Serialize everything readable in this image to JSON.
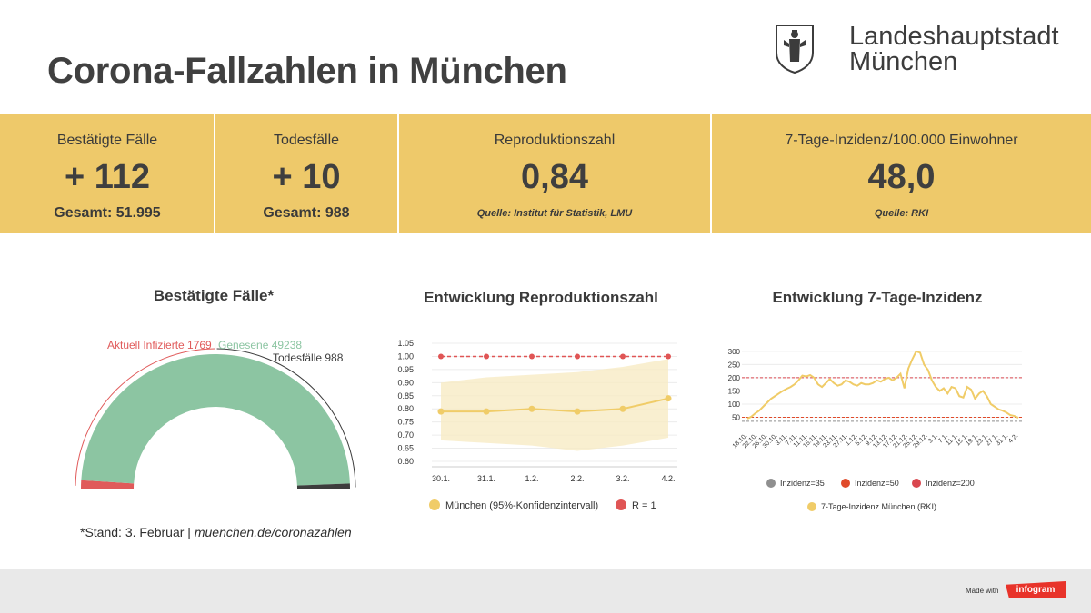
{
  "header": {
    "title": "Corona-Fallzahlen in München",
    "city_line1": "Landeshauptstadt",
    "city_line2": "München"
  },
  "kpis": [
    {
      "label": "Bestätigte Fälle",
      "value": "+ 112",
      "sub": "Gesamt: 51.995"
    },
    {
      "label": "Todesfälle",
      "value": "+ 10",
      "sub": "Gesamt: 988"
    },
    {
      "label": "Reproduktionszahl",
      "value": "0,84",
      "source": "Quelle: Institut für Statistik, LMU"
    },
    {
      "label": "7-Tage-Inzidenz/100.000 Einwohner",
      "value": "48,0",
      "source": "Quelle: RKI"
    }
  ],
  "chart_data": [
    {
      "type": "pie",
      "title": "Bestätigte Fälle*",
      "categories": [
        "Aktuell Infizierte",
        "Genesene",
        "Todesfälle"
      ],
      "values": [
        1769,
        49238,
        988
      ],
      "labels": [
        "Aktuell Infizierte 1769",
        "Genesene 49238",
        "Todesfälle 988"
      ],
      "colors": [
        "#e05a5a",
        "#8cc5a2",
        "#3d3d3d"
      ],
      "shape": "semi-donut"
    },
    {
      "type": "line",
      "title": "Entwicklung Reproduktionszahl",
      "categories": [
        "30.1.",
        "31.1.",
        "1.2.",
        "2.2.",
        "3.2.",
        "4.2."
      ],
      "series": [
        {
          "name": "München (95%-Konfidenzintervall)",
          "values": [
            0.79,
            0.79,
            0.8,
            0.79,
            0.8,
            0.84
          ],
          "lower": [
            0.68,
            0.67,
            0.66,
            0.64,
            0.66,
            0.69
          ],
          "upper": [
            0.9,
            0.92,
            0.93,
            0.94,
            0.96,
            0.99
          ],
          "color": "#f0cc68"
        },
        {
          "name": "R = 1",
          "values": [
            1.0,
            1.0,
            1.0,
            1.0,
            1.0,
            1.0
          ],
          "color": "#e05555"
        }
      ],
      "yticks": [
        "1.05",
        "1.00",
        "0.95",
        "0.90",
        "0.85",
        "0.80",
        "0.75",
        "0.70",
        "0.65",
        "0.60"
      ],
      "ylim": [
        0.6,
        1.05
      ]
    },
    {
      "type": "line",
      "title": "Entwicklung 7-Tage-Inzidenz",
      "xticks": [
        "18.10.",
        "22.10.",
        "26.10.",
        "30.10.",
        "3.11.",
        "7.11.",
        "11.11.",
        "15.11.",
        "19.11.",
        "23.11.",
        "27.11.",
        "1.12.",
        "5.12.",
        "9.12.",
        "13.12.",
        "17.12.",
        "21.12.",
        "25.12.",
        "29.12.",
        "3.1.",
        "7.1.",
        "11.1.",
        "15.1.",
        "19.1.",
        "23.1.",
        "27.1.",
        "31.1.",
        "4.2."
      ],
      "yticks": [
        "300",
        "250",
        "200",
        "150",
        "100",
        "50"
      ],
      "ylim": [
        0,
        310
      ],
      "series": [
        {
          "name": "7-Tage-Inzidenz München (RKI)",
          "color": "#f0cc68",
          "values": [
            45,
            52,
            65,
            75,
            90,
            105,
            120,
            130,
            140,
            150,
            158,
            165,
            175,
            190,
            208,
            205,
            210,
            200,
            175,
            165,
            180,
            195,
            180,
            170,
            175,
            190,
            185,
            175,
            170,
            180,
            175,
            175,
            180,
            190,
            185,
            195,
            200,
            190,
            200,
            215,
            160,
            235,
            270,
            300,
            295,
            250,
            230,
            190,
            165,
            150,
            160,
            140,
            165,
            160,
            130,
            125,
            165,
            155,
            120,
            140,
            150,
            130,
            100,
            90,
            80,
            75,
            68,
            58,
            55,
            48
          ]
        },
        {
          "name": "Inzidenz=35",
          "values": [
            35
          ],
          "color": "#8f8f8f"
        },
        {
          "name": "Inzidenz=50",
          "values": [
            50
          ],
          "color": "#e04a2a"
        },
        {
          "name": "Inzidenz=200",
          "values": [
            200
          ],
          "color": "#d9474f"
        }
      ]
    }
  ],
  "footnote": {
    "stand": "*Stand: 3. Februar | ",
    "link": "muenchen.de/coronazahlen"
  },
  "footer": {
    "made_with": "Made with",
    "brand": "infogram"
  }
}
